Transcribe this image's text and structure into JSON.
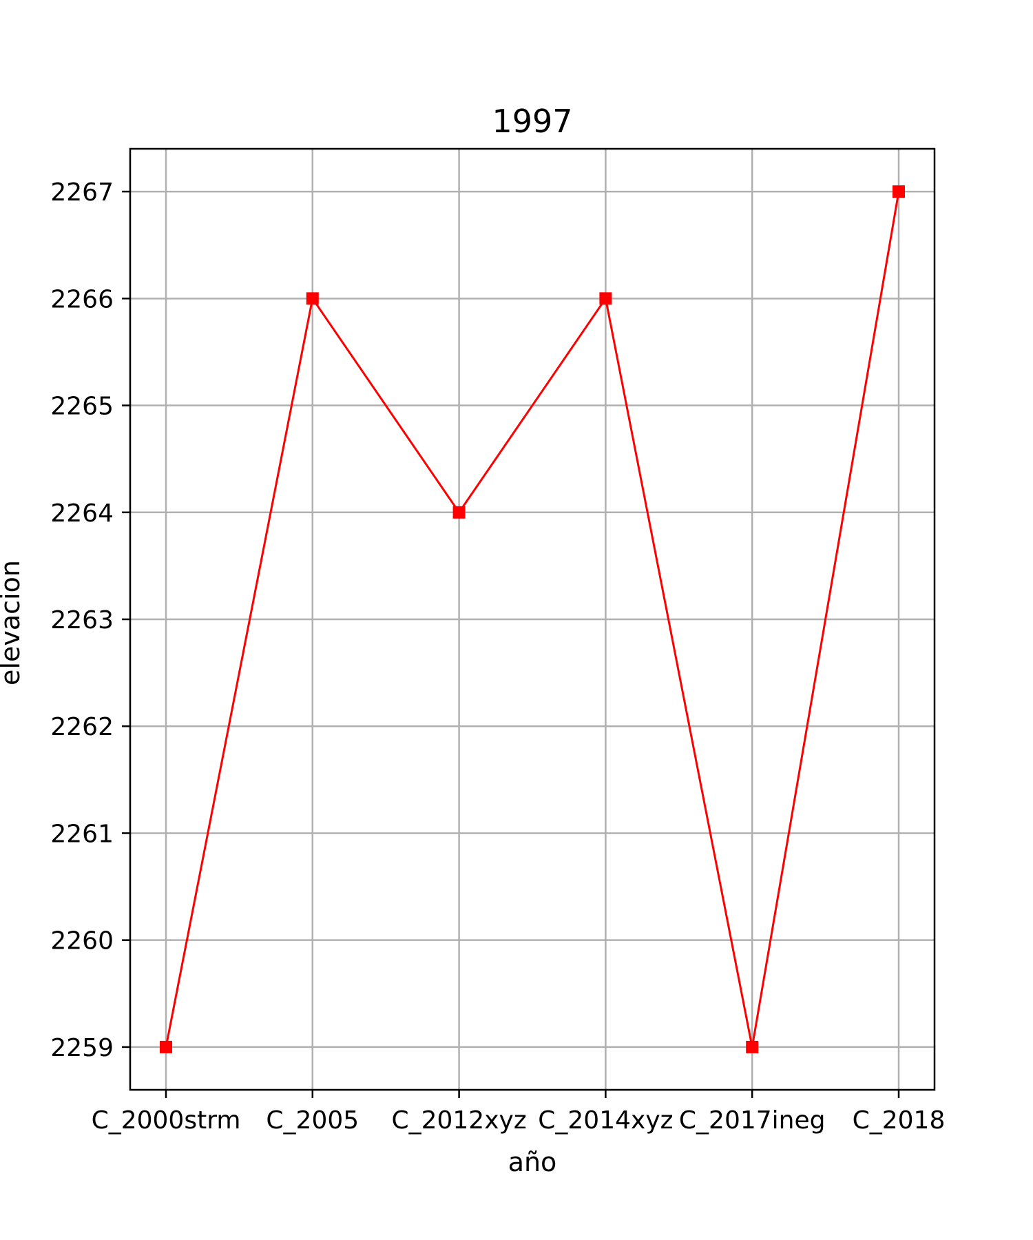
{
  "chart_data": {
    "type": "line",
    "title": "1997",
    "xlabel": "año",
    "ylabel": "elevacion",
    "categories": [
      "C_2000strm",
      "C_2005",
      "C_2012xyz",
      "C_2014xyz",
      "C_2017ineg",
      "C_2018"
    ],
    "series": [
      {
        "values": [
          2259,
          2266,
          2264,
          2266,
          2259,
          2267
        ]
      }
    ],
    "ylim": [
      2258.6,
      2267.4
    ],
    "yticks": [
      2259,
      2260,
      2261,
      2262,
      2263,
      2264,
      2265,
      2266,
      2267
    ],
    "grid": true,
    "line_color": "#ff0000",
    "marker": "square",
    "grid_color": "#b0b0b0"
  }
}
